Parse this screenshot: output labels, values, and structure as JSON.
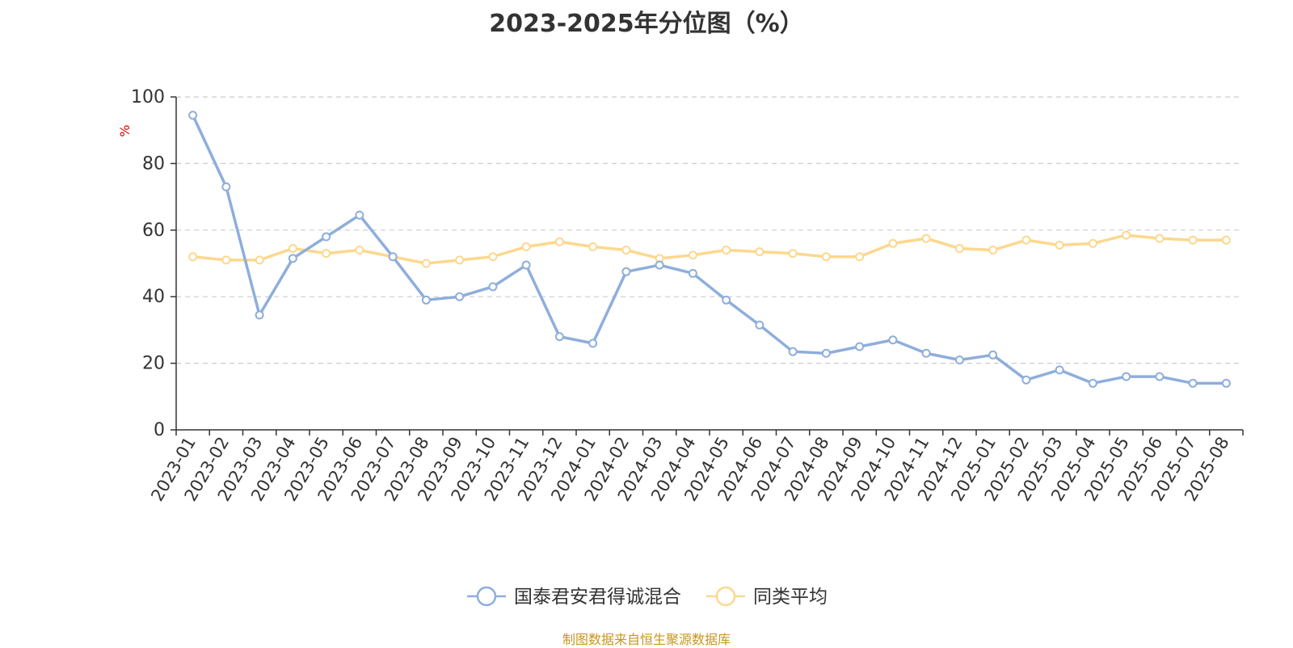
{
  "title": "2023-2025年分位图（%）",
  "source": "制图数据来自恒生聚源数据库",
  "colors": {
    "series1": "#8eaedc",
    "series2": "#fcd88e",
    "unit": "#e00000",
    "grid": "#cccccc",
    "axis": "#333333"
  },
  "chart_data": {
    "type": "line",
    "title": "2023-2025年分位图（%）",
    "ylabel": "%",
    "ylim": [
      0,
      100
    ],
    "yticks": [
      0,
      20,
      40,
      60,
      80,
      100
    ],
    "grid": true,
    "legend": "bottom-center",
    "categories": [
      "2023-01",
      "2023-02",
      "2023-03",
      "2023-04",
      "2023-05",
      "2023-06",
      "2023-07",
      "2023-08",
      "2023-09",
      "2023-10",
      "2023-11",
      "2023-12",
      "2024-01",
      "2024-02",
      "2024-03",
      "2024-04",
      "2024-05",
      "2024-06",
      "2024-07",
      "2024-08",
      "2024-09",
      "2024-10",
      "2024-11",
      "2024-12",
      "2025-01",
      "2025-02",
      "2025-03",
      "2025-04",
      "2025-05",
      "2025-06",
      "2025-07",
      "2025-08"
    ],
    "series": [
      {
        "name": "国泰君安君得诚混合",
        "values": [
          94.5,
          73,
          34.5,
          51.5,
          58,
          64.5,
          52,
          39,
          40,
          43,
          49.5,
          28,
          26,
          47.5,
          49.5,
          47,
          39,
          31.5,
          23.5,
          23,
          25,
          27,
          23,
          21,
          22.5,
          15,
          18,
          14,
          16,
          16,
          14,
          14
        ]
      },
      {
        "name": "同类平均",
        "values": [
          52,
          51,
          51,
          54.5,
          53,
          54,
          52,
          50,
          51,
          52,
          55,
          56.5,
          55,
          54,
          51.5,
          52.5,
          54,
          53.5,
          53,
          52,
          52,
          56,
          57.5,
          54.5,
          54,
          57,
          55.5,
          56,
          58.5,
          57.5,
          57,
          57
        ]
      }
    ]
  }
}
